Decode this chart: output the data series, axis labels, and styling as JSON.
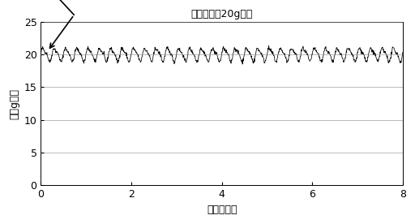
{
  "title": "一定の力（20g重）",
  "xlabel": "時間［秒］",
  "ylabel": "力［g重］",
  "xlim": [
    0,
    8
  ],
  "ylim": [
    0,
    25
  ],
  "xticks": [
    0,
    2,
    4,
    6,
    8
  ],
  "yticks": [
    0,
    5,
    10,
    15,
    20,
    25
  ],
  "mean_force": 20.0,
  "noise_amplitude": 0.9,
  "freq1": 4.0,
  "freq2": 8.0,
  "num_points": 1200,
  "line_color": "#000000",
  "bg_color": "#ffffff",
  "grid_color": "#888888",
  "annotation_c": "c",
  "title_fontsize": 9,
  "axis_fontsize": 9,
  "tick_fontsize": 9
}
